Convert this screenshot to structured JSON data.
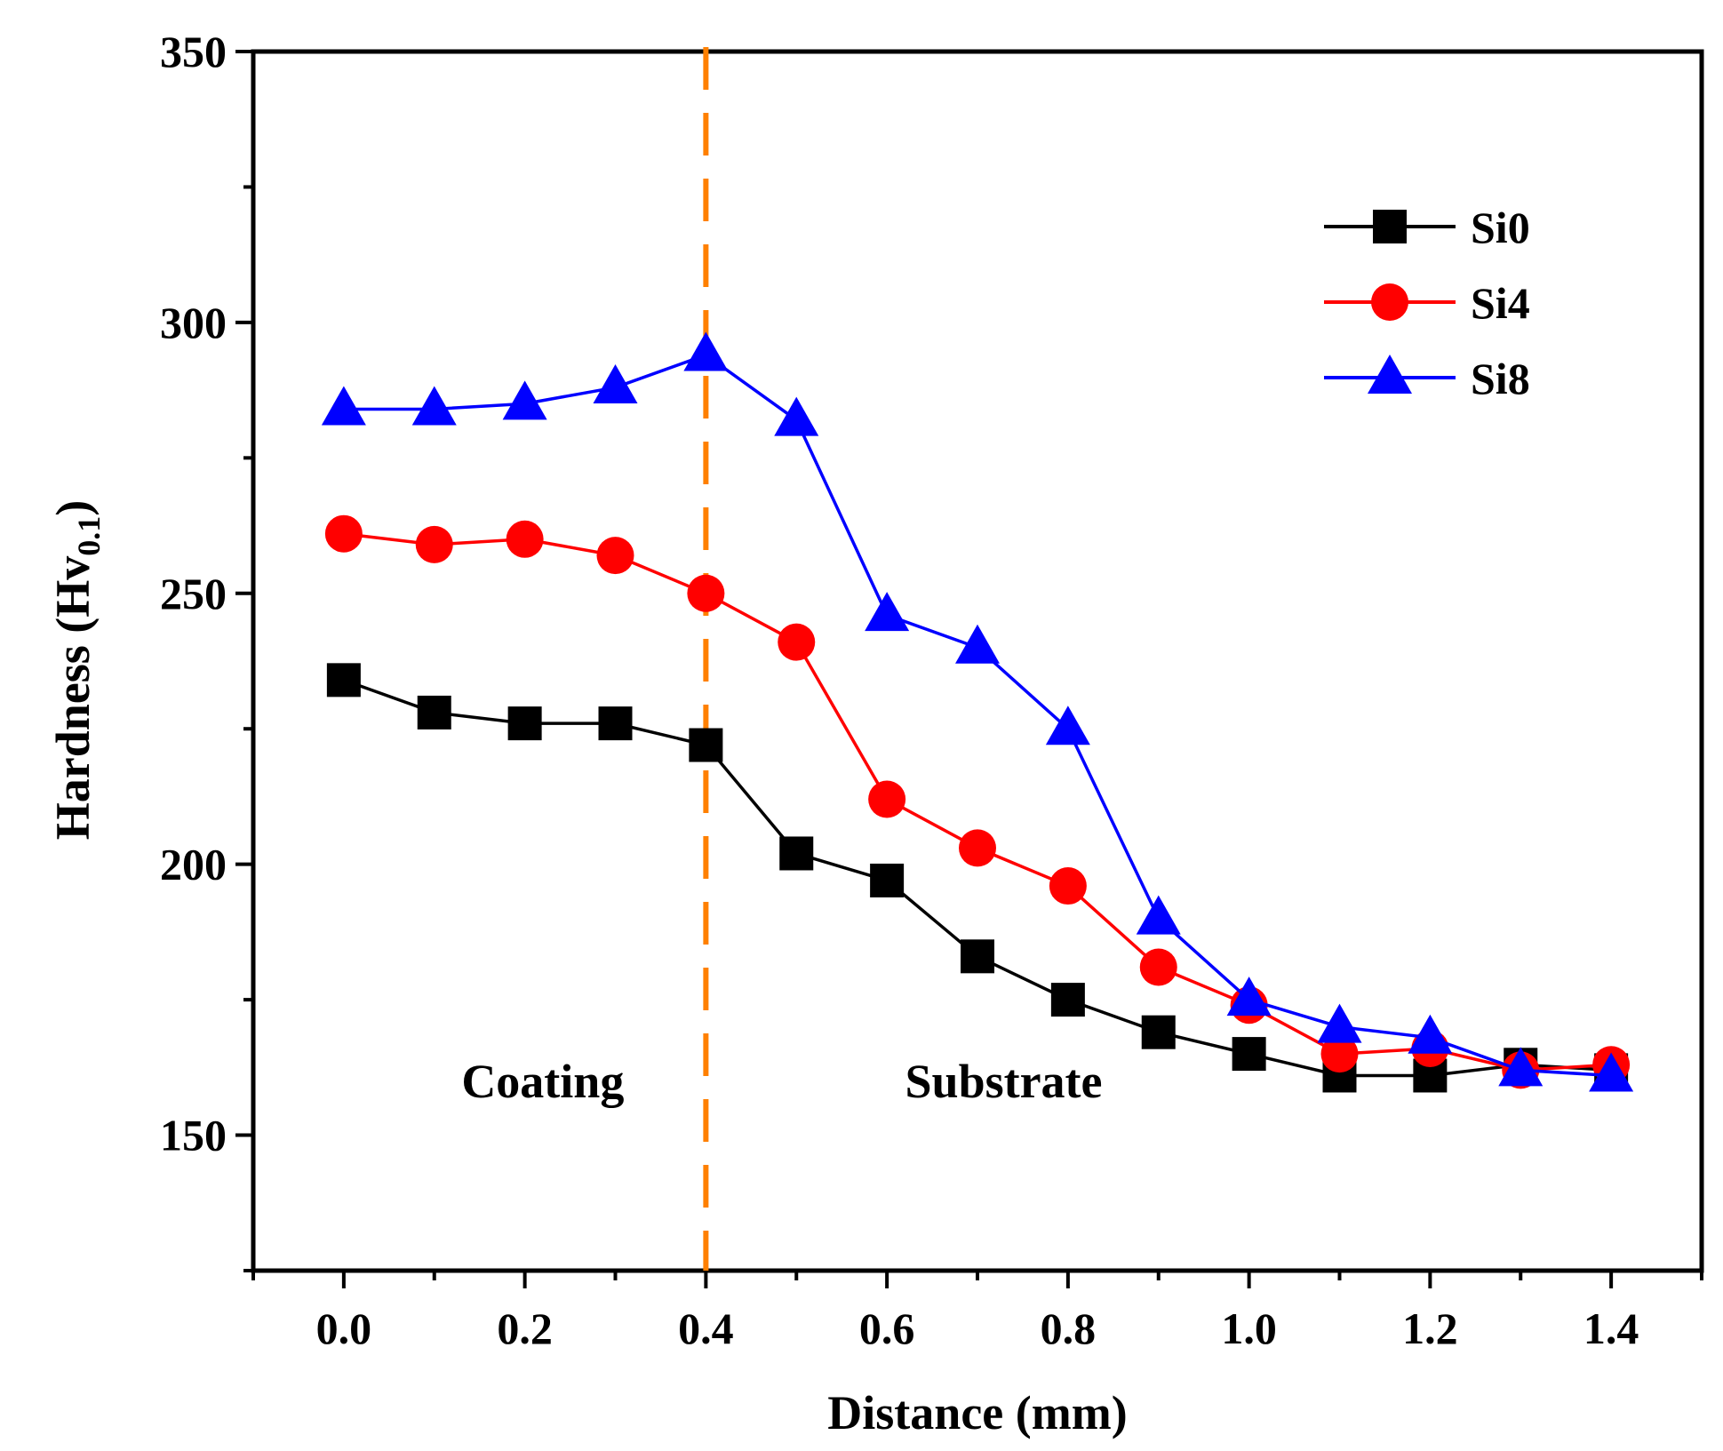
{
  "chart_data": {
    "type": "line",
    "title": "",
    "xlabel": "Distance (mm)",
    "ylabel_main": "Hardness (Hv",
    "ylabel_sub": "0.1",
    "ylabel_close": ")",
    "xlim": [
      -0.1,
      1.5
    ],
    "ylim": [
      125,
      350
    ],
    "xticks": [
      0.0,
      0.2,
      0.4,
      0.6,
      0.8,
      1.0,
      1.2,
      1.4
    ],
    "xtick_labels": [
      "0.0",
      "0.2",
      "0.4",
      "0.6",
      "0.8",
      "1.0",
      "1.2",
      "1.4"
    ],
    "yticks": [
      150,
      200,
      250,
      300,
      350
    ],
    "ytick_labels": [
      "150",
      "200",
      "250",
      "300",
      "350"
    ],
    "x": [
      0.0,
      0.1,
      0.2,
      0.3,
      0.4,
      0.5,
      0.6,
      0.7,
      0.8,
      0.9,
      1.0,
      1.1,
      1.2,
      1.3,
      1.4
    ],
    "series": [
      {
        "name": "Si0",
        "color": "#000000",
        "marker": "square",
        "values": [
          234,
          228,
          226,
          226,
          222,
          202,
          197,
          183,
          175,
          169,
          165,
          161,
          161,
          163,
          162
        ]
      },
      {
        "name": "Si4",
        "color": "#ff0000",
        "marker": "circle",
        "values": [
          261,
          259,
          260,
          257,
          250,
          241,
          212,
          203,
          196,
          181,
          174,
          165,
          166,
          162,
          163
        ]
      },
      {
        "name": "Si8",
        "color": "#0000ff",
        "marker": "triangle",
        "values": [
          284,
          284,
          285,
          288,
          294,
          282,
          246,
          240,
          225,
          190,
          175,
          170,
          168,
          162,
          161
        ]
      }
    ],
    "boundary": {
      "x": 0.4,
      "color": "#ff8000",
      "style": "dashed"
    },
    "annotations": [
      {
        "text": "Coating",
        "x": 0.13,
        "y": 157
      },
      {
        "text": "Substrate",
        "x": 0.62,
        "y": 157
      }
    ],
    "legend_position": "top-right",
    "grid": false
  }
}
